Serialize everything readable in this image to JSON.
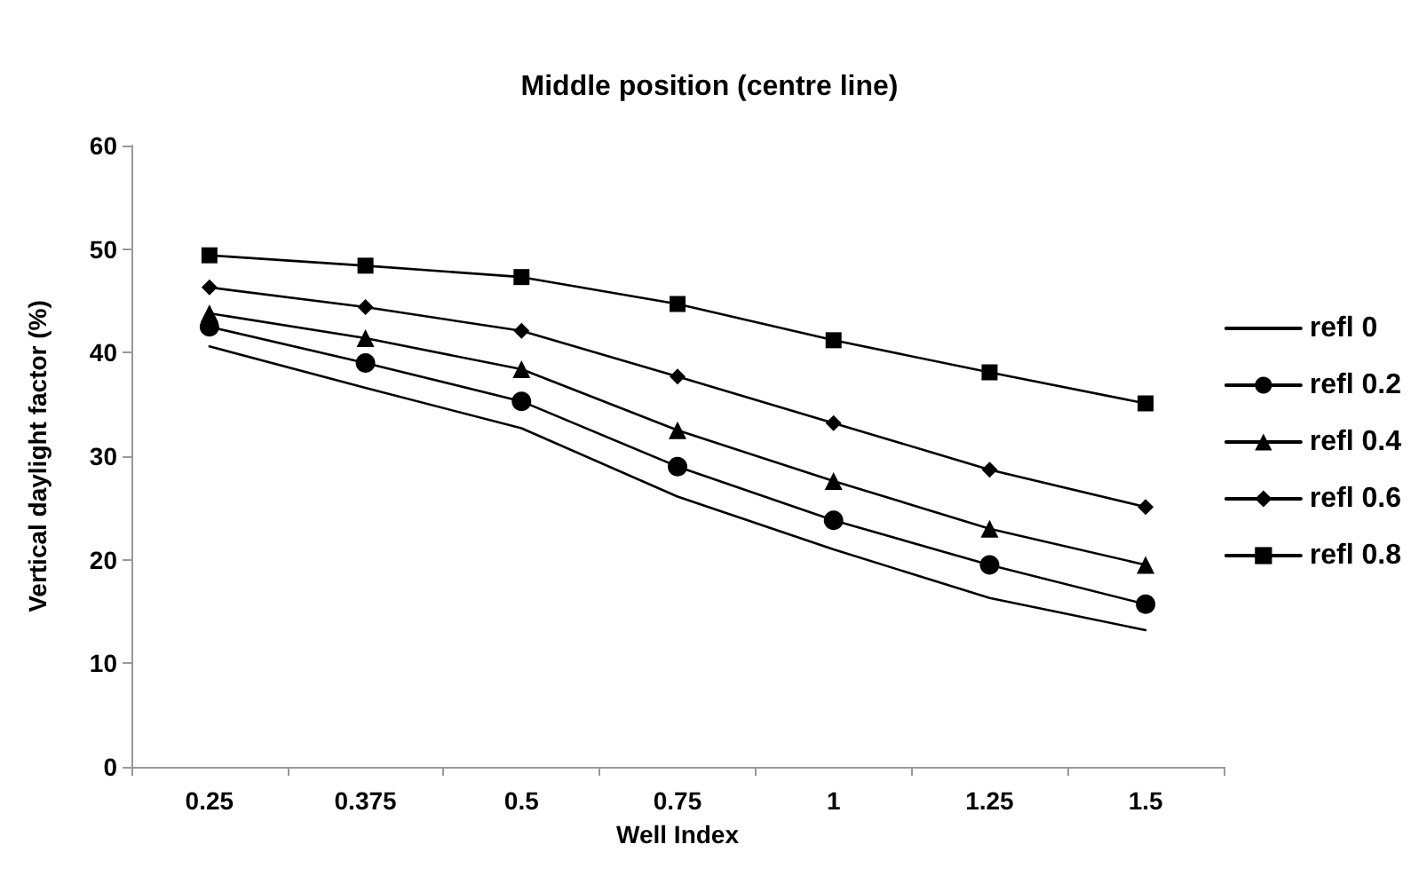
{
  "chart_data": {
    "type": "line",
    "title": "Middle position (centre line)",
    "xlabel": "Well Index",
    "ylabel": "Vertical daylight factor (%)",
    "categories": [
      "0.25",
      "0.375",
      "0.5",
      "0.75",
      "1",
      "1.25",
      "1.5"
    ],
    "series": [
      {
        "name": "refl 0",
        "color": "#000000",
        "marker": "none",
        "values": [
          40.6,
          36.6,
          32.7,
          26.1,
          21.0,
          16.3,
          13.2
        ]
      },
      {
        "name": "refl 0.2",
        "color": "#000000",
        "marker": "circle",
        "values": [
          42.5,
          39.0,
          35.3,
          29.0,
          23.8,
          19.5,
          15.7
        ]
      },
      {
        "name": "refl 0.4",
        "color": "#000000",
        "marker": "triangle",
        "values": [
          43.8,
          41.4,
          38.4,
          32.5,
          27.6,
          23.0,
          19.5
        ]
      },
      {
        "name": "refl 0.6",
        "color": "#000000",
        "marker": "diamond",
        "values": [
          46.3,
          44.4,
          42.1,
          37.7,
          33.2,
          28.7,
          25.1
        ]
      },
      {
        "name": "refl 0.8",
        "color": "#000000",
        "marker": "square",
        "values": [
          49.4,
          48.4,
          47.3,
          44.7,
          41.2,
          38.1,
          35.1
        ]
      }
    ],
    "ylim": [
      0,
      60
    ],
    "yticks": [
      0,
      10,
      20,
      30,
      40,
      50,
      60
    ],
    "grid": false,
    "legend": "right",
    "line_style": "solid"
  }
}
